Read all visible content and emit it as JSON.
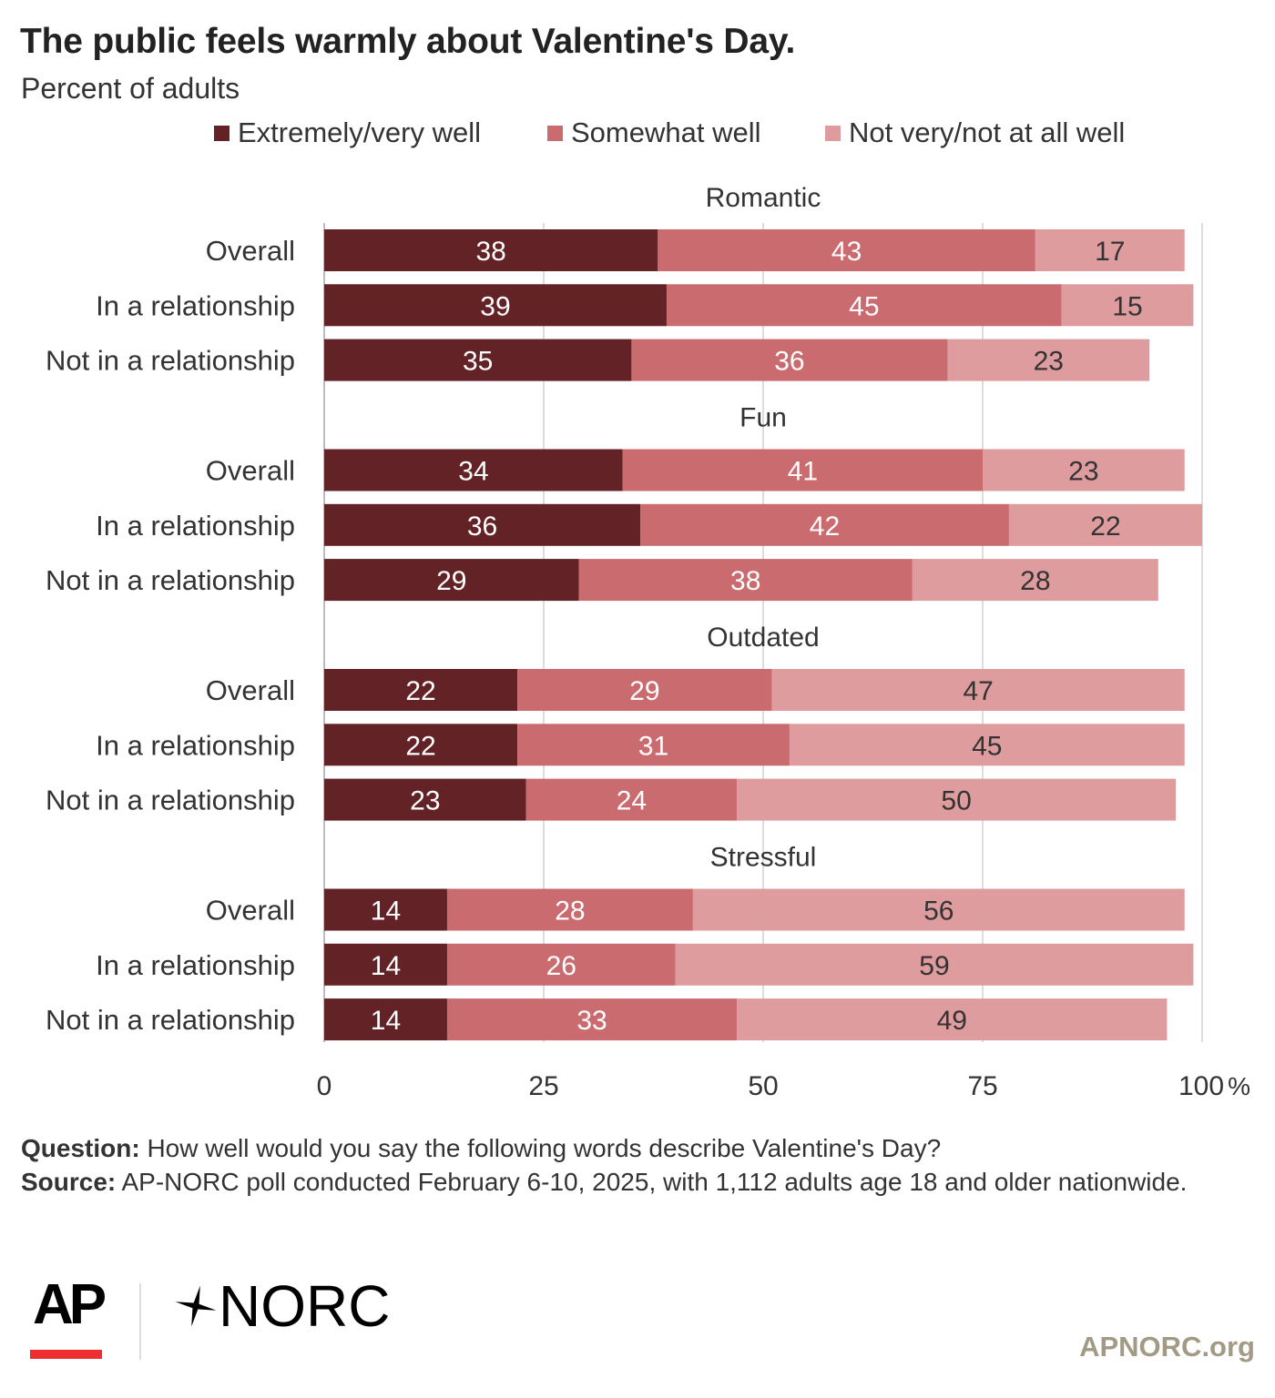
{
  "title": "The public feels warmly about Valentine's Day.",
  "subtitle": "Percent of adults",
  "legend": [
    {
      "label": "Extremely/very well",
      "color": "#622226"
    },
    {
      "label": "Somewhat well",
      "color": "#c96b6f"
    },
    {
      "label": "Not very/not at all well",
      "color": "#de9c9f"
    }
  ],
  "chart_data": {
    "type": "bar",
    "orientation": "horizontal",
    "stacked": true,
    "xlim": [
      0,
      100
    ],
    "ticks": [
      "0",
      "25",
      "50",
      "75",
      "100"
    ],
    "tick_values": [
      0,
      25,
      50,
      75,
      100
    ],
    "tick_suffix": "%",
    "grid": true,
    "legend_position": "top",
    "series": [
      {
        "name": "Extremely/very well",
        "color": "#622226"
      },
      {
        "name": "Somewhat well",
        "color": "#c96b6f"
      },
      {
        "name": "Not very/not at all well",
        "color": "#de9c9f"
      }
    ],
    "groups": [
      {
        "name": "Romantic",
        "rows": [
          {
            "label": "Overall",
            "values": [
              38,
              43,
              17
            ]
          },
          {
            "label": "In a relationship",
            "values": [
              39,
              45,
              15
            ]
          },
          {
            "label": "Not in a relationship",
            "values": [
              35,
              36,
              23
            ]
          }
        ]
      },
      {
        "name": "Fun",
        "rows": [
          {
            "label": "Overall",
            "values": [
              34,
              41,
              23
            ]
          },
          {
            "label": "In a relationship",
            "values": [
              36,
              42,
              22
            ]
          },
          {
            "label": "Not in a relationship",
            "values": [
              29,
              38,
              28
            ]
          }
        ]
      },
      {
        "name": "Outdated",
        "rows": [
          {
            "label": "Overall",
            "values": [
              22,
              29,
              47
            ]
          },
          {
            "label": "In a relationship",
            "values": [
              22,
              31,
              45
            ]
          },
          {
            "label": "Not in a relationship",
            "values": [
              23,
              24,
              50
            ]
          }
        ]
      },
      {
        "name": "Stressful",
        "rows": [
          {
            "label": "Overall",
            "values": [
              14,
              28,
              56
            ]
          },
          {
            "label": "In a relationship",
            "values": [
              14,
              26,
              59
            ]
          },
          {
            "label": "Not in a relationship",
            "values": [
              14,
              33,
              49
            ]
          }
        ]
      }
    ]
  },
  "footnote": {
    "question_label": "Question:",
    "question_text": "How well would you say the following words describe Valentine's Day?",
    "source_label": "Source:",
    "source_text": "AP-NORC poll conducted February 6-10, 2025, with 1,112 adults age 18 and older nationwide."
  },
  "logos": {
    "ap": "AP",
    "norc": "NORC",
    "url": "APNORC.org"
  }
}
